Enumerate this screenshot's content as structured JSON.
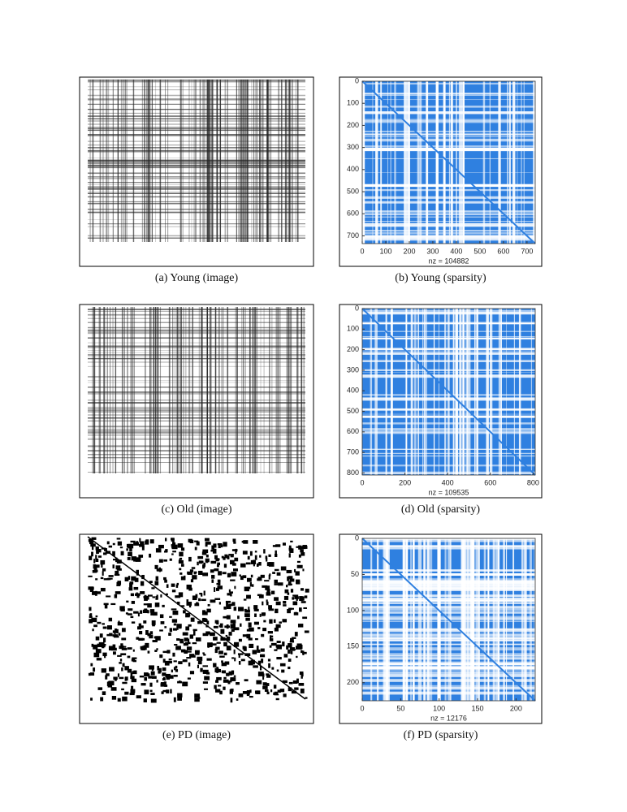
{
  "panels": [
    {
      "caption": "(a) Young (image)"
    },
    {
      "caption": "(b) Young (sparsity)",
      "xlim": [
        0,
        735
      ],
      "ylim": [
        0,
        735
      ],
      "xticks": [
        0,
        100,
        200,
        300,
        400,
        500,
        600,
        700
      ],
      "yticks": [
        0,
        100,
        200,
        300,
        400,
        500,
        600,
        700
      ],
      "xlabel": "nz = 104882"
    },
    {
      "caption": "(c) Old (image)"
    },
    {
      "caption": "(d) Old (sparsity)",
      "xlim": [
        0,
        810
      ],
      "ylim": [
        0,
        810
      ],
      "xticks": [
        0,
        200,
        400,
        600,
        800
      ],
      "yticks": [
        0,
        100,
        200,
        300,
        400,
        500,
        600,
        700,
        800
      ],
      "xlabel": "nz = 109535"
    },
    {
      "caption": "(e) PD (image)"
    },
    {
      "caption": "(f) PD (sparsity)",
      "xlim": [
        0,
        225
      ],
      "ylim": [
        0,
        225
      ],
      "xticks": [
        0,
        50,
        100,
        150,
        200
      ],
      "yticks": [
        0,
        50,
        100,
        150,
        200
      ],
      "xlabel": "nz = 12176"
    }
  ]
}
